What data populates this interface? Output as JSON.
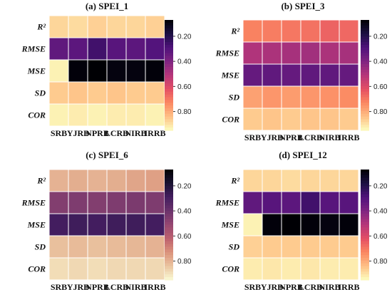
{
  "chart_data": [
    {
      "type": "heatmap",
      "title": "(a)  SPEI_1",
      "rows": [
        "R²",
        "RMSE",
        "MSE",
        "SD",
        "COR"
      ],
      "columns": [
        "SRB",
        "YJRB",
        "NPRB",
        "LCRB",
        "NIRB",
        "IRRB"
      ],
      "colormap": "magma",
      "colorbar": {
        "range": [
          0.07,
          0.95
        ],
        "ticks": [
          "0.20",
          "0.40",
          "0.60",
          "0.80"
        ]
      },
      "values": [
        [
          0.88,
          0.89,
          0.87,
          0.88,
          0.88,
          0.87
        ],
        [
          0.33,
          0.32,
          0.26,
          0.31,
          0.32,
          0.3
        ],
        [
          0.93,
          0.08,
          0.07,
          0.09,
          0.09,
          0.08
        ],
        [
          0.86,
          0.85,
          0.86,
          0.85,
          0.86,
          0.86
        ],
        [
          0.93,
          0.92,
          0.93,
          0.92,
          0.92,
          0.93
        ]
      ]
    },
    {
      "type": "heatmap",
      "title": "(b)  SPEI_3",
      "rows": [
        "R²",
        "RMSE",
        "MSE",
        "SD",
        "COR"
      ],
      "columns": [
        "SRB",
        "YJRB",
        "NPRB",
        "LCRB",
        "NIRB",
        "IRRB"
      ],
      "colormap": "magma",
      "colorbar": {
        "range": [
          0.07,
          0.95
        ],
        "ticks": [
          "0.20",
          "0.40",
          "0.60",
          "0.80"
        ]
      },
      "values": [
        [
          0.72,
          0.71,
          0.7,
          0.69,
          0.66,
          0.67
        ],
        [
          0.5,
          0.49,
          0.48,
          0.47,
          0.49,
          0.48
        ],
        [
          0.34,
          0.33,
          0.34,
          0.33,
          0.33,
          0.34
        ],
        [
          0.78,
          0.76,
          0.77,
          0.76,
          0.75,
          0.74
        ],
        [
          0.86,
          0.85,
          0.86,
          0.85,
          0.85,
          0.86
        ]
      ]
    },
    {
      "type": "heatmap",
      "title": "(c)  SPEI_6",
      "rows": [
        "R²",
        "RMSE",
        "MSE",
        "SD",
        "COR"
      ],
      "columns": [
        "SRB",
        "YJRB",
        "NPRB",
        "LCRB",
        "NIRB",
        "IRRB"
      ],
      "colormap": "magma (faded)",
      "colorbar": {
        "range": [
          0.07,
          0.95
        ],
        "ticks": [
          "0.20",
          "0.40",
          "0.60",
          "0.80"
        ]
      },
      "values": [
        [
          0.8,
          0.79,
          0.8,
          0.79,
          0.77,
          0.76
        ],
        [
          0.46,
          0.45,
          0.46,
          0.45,
          0.44,
          0.45
        ],
        [
          0.29,
          0.28,
          0.29,
          0.28,
          0.28,
          0.29
        ],
        [
          0.83,
          0.82,
          0.83,
          0.82,
          0.81,
          0.8
        ],
        [
          0.89,
          0.88,
          0.89,
          0.88,
          0.88,
          0.88
        ]
      ]
    },
    {
      "type": "heatmap",
      "title": "(d)  SPEI_12",
      "rows": [
        "R²",
        "RMSE",
        "MSE",
        "SD",
        "COR"
      ],
      "columns": [
        "SRB",
        "YJRB",
        "NPRB",
        "LCRB",
        "NIRB",
        "IRRB"
      ],
      "colormap": "magma",
      "colorbar": {
        "range": [
          0.07,
          0.95
        ],
        "ticks": [
          "0.20",
          "0.40",
          "0.60",
          "0.80"
        ]
      },
      "values": [
        [
          0.88,
          0.88,
          0.89,
          0.88,
          0.88,
          0.88
        ],
        [
          0.33,
          0.31,
          0.32,
          0.26,
          0.31,
          0.31
        ],
        [
          0.93,
          0.08,
          0.07,
          0.08,
          0.09,
          0.08
        ],
        [
          0.87,
          0.86,
          0.86,
          0.86,
          0.86,
          0.86
        ],
        [
          0.92,
          0.91,
          0.92,
          0.91,
          0.92,
          0.92
        ]
      ]
    }
  ]
}
